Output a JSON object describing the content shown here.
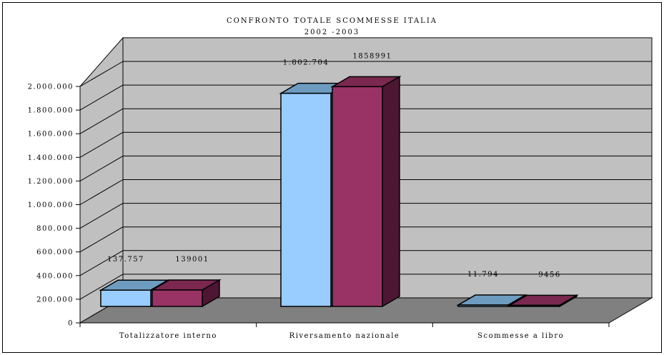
{
  "chart_data": {
    "type": "bar",
    "title": "CONFRONTO TOTALE SCOMMESSE ITALIA",
    "subtitle": "2002 -2003",
    "categories": [
      "Totalizzatore interno",
      "Riversamento nazionale",
      "Scommesse a libro"
    ],
    "series": [
      {
        "color": "#99ccff",
        "top_color": "#6e9cc0",
        "values": [
          137757,
          1802704,
          11794
        ],
        "labels": [
          "137.757",
          "1.802.704",
          "11.794"
        ]
      },
      {
        "color": "#993366",
        "top_color": "#7a2850",
        "side_color": "#4d1633",
        "values": [
          139001,
          1858991,
          9456
        ],
        "labels": [
          "139001",
          "1858991",
          "9456"
        ]
      }
    ],
    "ylim": [
      0,
      2000000
    ],
    "y_ticks": [
      0,
      200000,
      400000,
      600000,
      800000,
      1000000,
      1200000,
      1400000,
      1600000,
      1800000,
      2000000
    ],
    "y_tick_labels": [
      "0",
      "200.000",
      "400.000",
      "600.000",
      "800.000",
      "1.000.000",
      "1.200.000",
      "1.400.000",
      "1.600.000",
      "1.800.000",
      "2.000.000"
    ],
    "grid": true,
    "legend": "none",
    "wall_color": "#c0c0c0",
    "floor_color": "#808080"
  }
}
